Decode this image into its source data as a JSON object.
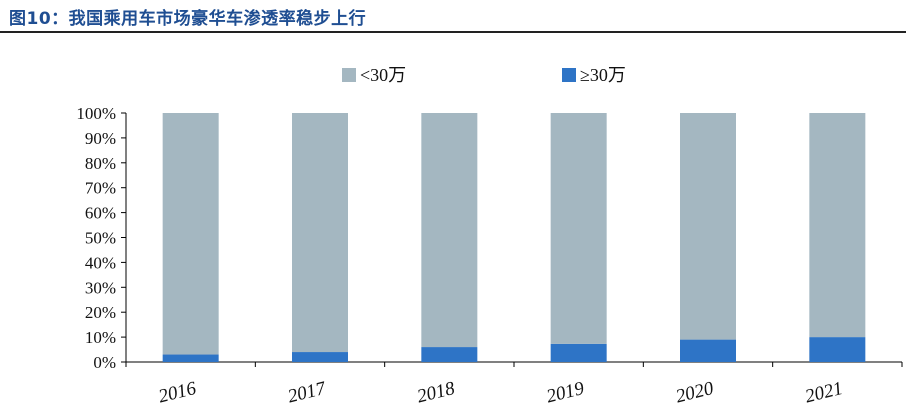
{
  "figure_title": "图10：我国乘用车市场豪华车渗透率稳步上行",
  "colors": {
    "lt30": "#a4b7c1",
    "ge30": "#2e74c6",
    "title": "#1f4e92"
  },
  "chart_data": {
    "type": "bar",
    "stacked": true,
    "categories": [
      "2016",
      "2017",
      "2018",
      "2019",
      "2020",
      "2021"
    ],
    "series": [
      {
        "name": "≥30万",
        "color": "#2e74c6",
        "values": [
          3,
          4,
          6,
          7.3,
          9,
          10
        ]
      },
      {
        "name": "<30万",
        "color": "#a4b7c1",
        "values": [
          97,
          96,
          94,
          92.7,
          91,
          90
        ]
      }
    ],
    "ylim": [
      0,
      100
    ],
    "yticks": [
      "0%",
      "10%",
      "20%",
      "30%",
      "40%",
      "50%",
      "60%",
      "70%",
      "80%",
      "90%",
      "100%"
    ],
    "legend": [
      {
        "label": "<30万",
        "color": "#a4b7c1"
      },
      {
        "label": "≥30万",
        "color": "#2e74c6"
      }
    ],
    "legend_position": "top",
    "grid": false
  }
}
